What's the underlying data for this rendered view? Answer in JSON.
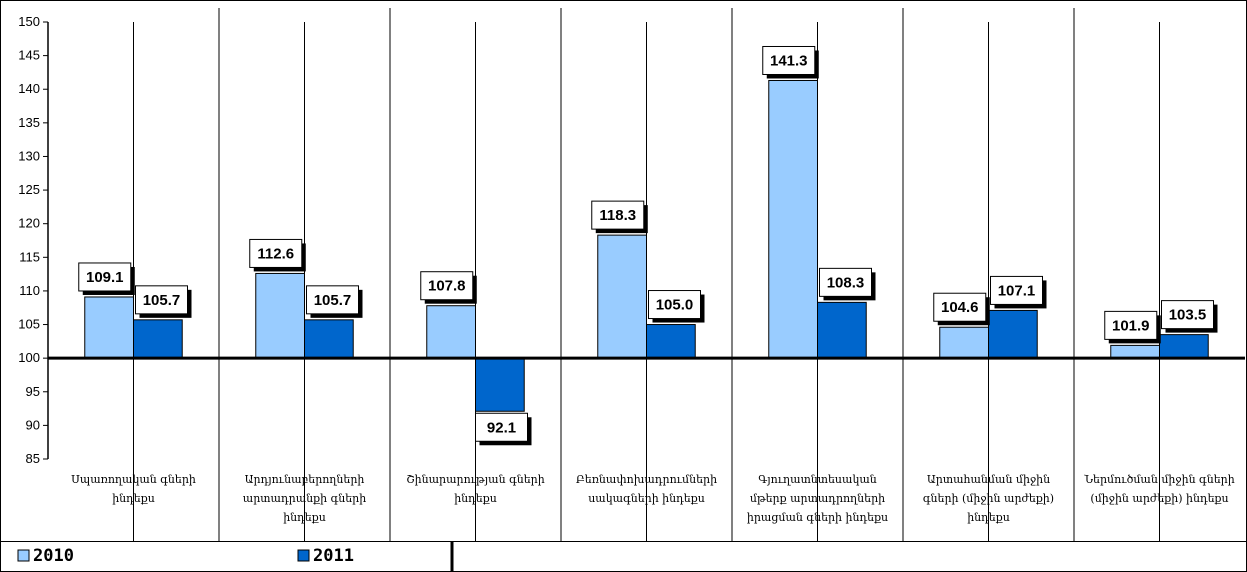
{
  "chart_data": {
    "type": "bar",
    "title": "",
    "xlabel": "",
    "ylabel": "",
    "ylim": [
      85,
      150
    ],
    "baseline": 100,
    "yticks": [
      85,
      90,
      95,
      100,
      105,
      110,
      115,
      120,
      125,
      130,
      135,
      140,
      145,
      150
    ],
    "grid": false,
    "legend_position": "bottom-left",
    "categories": [
      [
        "Սպառողական գների",
        "ինդեքս"
      ],
      [
        "Արդյունաբերողների",
        "արտադրանքի գների",
        "ինդեքս"
      ],
      [
        "Շինարարության գների",
        "ինդեքս"
      ],
      [
        "Բեռնափոխադրումների",
        "սակագների ինդեքս"
      ],
      [
        "Գյուղատնտեսական",
        "մթերք արտադրողների",
        "իրացման գների ինդեքս"
      ],
      [
        "Արտահանման միջին",
        "գների (միջին արժեքի)",
        "ինդեքս"
      ],
      [
        "Ներմուծման միջին գների",
        "(միջին արժեքի) ինդեքս"
      ]
    ],
    "series": [
      {
        "name": "2010",
        "color": "#99ccff",
        "values": [
          109.1,
          112.6,
          107.8,
          118.3,
          141.3,
          104.6,
          101.9
        ]
      },
      {
        "name": "2011",
        "color": "#0066cc",
        "values": [
          105.7,
          105.7,
          92.1,
          105.0,
          108.3,
          107.1,
          103.5
        ]
      }
    ]
  }
}
